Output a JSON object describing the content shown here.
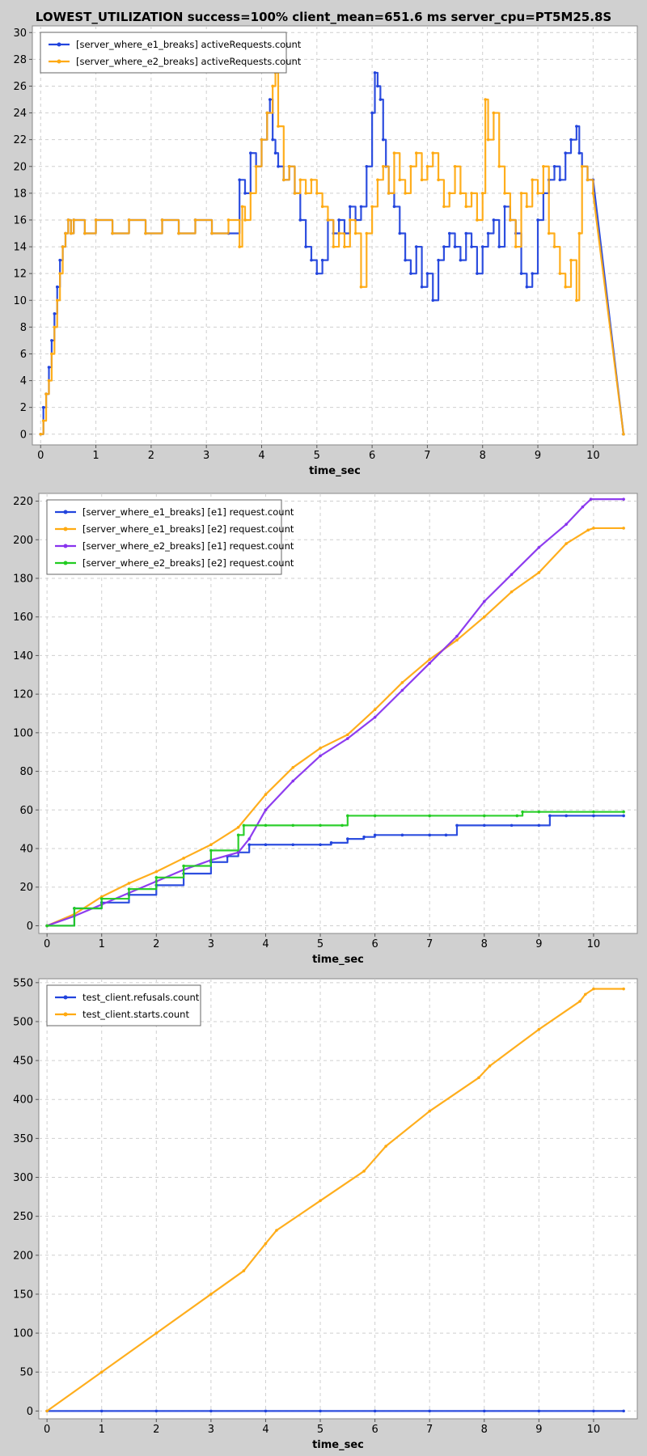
{
  "figure": {
    "title": "LOWEST_UTILIZATION success=100% client_mean=651.6 ms server_cpu=PT5M25.8S"
  },
  "chart_data": [
    {
      "type": "line",
      "xlabel": "time_sec",
      "ylabel": "",
      "xlim": [
        -0.15,
        10.8
      ],
      "ylim": [
        -0.8,
        30.5
      ],
      "xticks": [
        0,
        1,
        2,
        3,
        4,
        5,
        6,
        7,
        8,
        9,
        10
      ],
      "yticks": [
        0,
        2,
        4,
        6,
        8,
        10,
        12,
        14,
        16,
        18,
        20,
        22,
        24,
        26,
        28,
        30
      ],
      "grid": true,
      "legend_position": "top-left",
      "series": [
        {
          "name": "[server_where_e1_breaks] activeRequests.count",
          "color": "#2244dd",
          "step": true,
          "x": [
            0,
            0.05,
            0.1,
            0.15,
            0.2,
            0.25,
            0.3,
            0.35,
            0.4,
            0.45,
            0.5,
            0.55,
            0.6,
            0.8,
            1.0,
            1.3,
            1.6,
            1.9,
            2.2,
            2.5,
            2.8,
            3.1,
            3.4,
            3.6,
            3.7,
            3.8,
            3.9,
            4.0,
            4.1,
            4.15,
            4.2,
            4.25,
            4.3,
            4.4,
            4.5,
            4.6,
            4.7,
            4.8,
            4.9,
            5.0,
            5.1,
            5.2,
            5.3,
            5.4,
            5.5,
            5.6,
            5.7,
            5.8,
            5.9,
            6.0,
            6.05,
            6.1,
            6.15,
            6.2,
            6.25,
            6.3,
            6.4,
            6.5,
            6.6,
            6.7,
            6.8,
            6.9,
            7.0,
            7.1,
            7.2,
            7.3,
            7.4,
            7.5,
            7.6,
            7.7,
            7.8,
            7.9,
            8.0,
            8.1,
            8.2,
            8.3,
            8.4,
            8.5,
            8.6,
            8.7,
            8.8,
            8.9,
            9.0,
            9.1,
            9.2,
            9.3,
            9.4,
            9.5,
            9.6,
            9.7,
            9.75,
            9.8,
            9.9,
            10.0,
            10.55
          ],
          "y": [
            0,
            2,
            3,
            5,
            7,
            9,
            11,
            13,
            14,
            15,
            16,
            15,
            16,
            15,
            16,
            15,
            16,
            15,
            16,
            15,
            16,
            15,
            15,
            19,
            18,
            21,
            20,
            22,
            24,
            25,
            22,
            21,
            20,
            19,
            20,
            18,
            16,
            14,
            13,
            12,
            13,
            16,
            15,
            16,
            15,
            17,
            16,
            17,
            20,
            24,
            27,
            26,
            25,
            22,
            20,
            18,
            17,
            15,
            13,
            12,
            14,
            11,
            12,
            10,
            13,
            14,
            15,
            14,
            13,
            15,
            14,
            12,
            14,
            15,
            16,
            14,
            17,
            16,
            15,
            12,
            11,
            12,
            16,
            18,
            19,
            20,
            19,
            21,
            22,
            23,
            21,
            20,
            19,
            19,
            0
          ]
        },
        {
          "name": "[server_where_e2_breaks] activeRequests.count",
          "color": "#ffaa11",
          "step": true,
          "x": [
            0,
            0.05,
            0.1,
            0.15,
            0.2,
            0.25,
            0.3,
            0.35,
            0.4,
            0.45,
            0.5,
            0.55,
            0.6,
            0.8,
            1.0,
            1.3,
            1.6,
            1.9,
            2.2,
            2.5,
            2.8,
            3.1,
            3.4,
            3.6,
            3.65,
            3.7,
            3.8,
            3.9,
            4.0,
            4.1,
            4.2,
            4.25,
            4.3,
            4.4,
            4.5,
            4.6,
            4.7,
            4.8,
            4.9,
            5.0,
            5.1,
            5.2,
            5.3,
            5.4,
            5.5,
            5.6,
            5.7,
            5.8,
            5.9,
            6.0,
            6.1,
            6.2,
            6.3,
            6.4,
            6.5,
            6.6,
            6.7,
            6.8,
            6.9,
            7.0,
            7.1,
            7.2,
            7.3,
            7.4,
            7.5,
            7.6,
            7.7,
            7.8,
            7.9,
            8.0,
            8.05,
            8.1,
            8.2,
            8.3,
            8.4,
            8.5,
            8.6,
            8.7,
            8.8,
            8.9,
            9.0,
            9.1,
            9.2,
            9.3,
            9.4,
            9.5,
            9.6,
            9.7,
            9.75,
            9.8,
            9.9,
            10.0,
            10.55
          ],
          "y": [
            0,
            1,
            3,
            4,
            6,
            8,
            10,
            12,
            14,
            15,
            16,
            15,
            16,
            15,
            16,
            15,
            16,
            15,
            16,
            15,
            16,
            15,
            16,
            14,
            17,
            16,
            18,
            20,
            22,
            24,
            26,
            27,
            23,
            19,
            20,
            18,
            19,
            18,
            19,
            18,
            17,
            16,
            14,
            15,
            14,
            16,
            15,
            11,
            15,
            17,
            19,
            20,
            18,
            21,
            19,
            18,
            20,
            21,
            19,
            20,
            21,
            19,
            17,
            18,
            20,
            18,
            17,
            18,
            16,
            18,
            25,
            22,
            24,
            20,
            18,
            16,
            14,
            18,
            17,
            19,
            18,
            20,
            15,
            14,
            12,
            11,
            13,
            10,
            15,
            20,
            19,
            18,
            0
          ]
        }
      ]
    },
    {
      "type": "line",
      "xlabel": "time_sec",
      "ylabel": "",
      "xlim": [
        -0.15,
        10.8
      ],
      "ylim": [
        -4,
        224
      ],
      "xticks": [
        0,
        1,
        2,
        3,
        4,
        5,
        6,
        7,
        8,
        9,
        10
      ],
      "yticks": [
        0,
        20,
        40,
        60,
        80,
        100,
        120,
        140,
        160,
        180,
        200,
        220
      ],
      "grid": true,
      "legend_position": "top-left",
      "series": [
        {
          "name": "[server_where_e1_breaks] [e1] request.count",
          "color": "#2244dd",
          "step": true,
          "x": [
            0,
            0.5,
            1.0,
            1.5,
            2.0,
            2.5,
            3.0,
            3.3,
            3.5,
            3.7,
            4.0,
            4.5,
            5.0,
            5.2,
            5.5,
            5.8,
            6.0,
            6.5,
            7.0,
            7.3,
            7.5,
            8.0,
            8.5,
            9.0,
            9.2,
            9.5,
            10.0,
            10.55
          ],
          "y": [
            0,
            9,
            12,
            16,
            21,
            27,
            33,
            36,
            38,
            42,
            42,
            42,
            42,
            43,
            45,
            46,
            47,
            47,
            47,
            47,
            52,
            52,
            52,
            52,
            57,
            57,
            57,
            57
          ]
        },
        {
          "name": "[server_where_e1_breaks] [e2] request.count",
          "color": "#ffaa11",
          "step": false,
          "x": [
            0,
            0.5,
            1.0,
            1.5,
            2.0,
            2.5,
            3.0,
            3.5,
            4.0,
            4.5,
            5.0,
            5.5,
            6.0,
            6.5,
            7.0,
            7.5,
            8.0,
            8.5,
            9.0,
            9.5,
            9.9,
            10.0,
            10.55
          ],
          "y": [
            0,
            6,
            15,
            22,
            28,
            35,
            42,
            51,
            68,
            82,
            92,
            99,
            112,
            126,
            138,
            148,
            160,
            173,
            183,
            198,
            205,
            206,
            206
          ]
        },
        {
          "name": "[server_where_e2_breaks] [e1] request.count",
          "color": "#8833ee",
          "step": false,
          "x": [
            0,
            0.5,
            1.0,
            1.5,
            2.0,
            2.5,
            3.0,
            3.5,
            3.7,
            4.0,
            4.5,
            5.0,
            5.5,
            6.0,
            6.5,
            7.0,
            7.5,
            8.0,
            8.5,
            9.0,
            9.5,
            9.8,
            9.95,
            10.55
          ],
          "y": [
            0,
            5,
            11,
            17,
            23,
            29,
            34,
            38,
            45,
            60,
            75,
            88,
            97,
            108,
            122,
            136,
            150,
            168,
            182,
            196,
            208,
            217,
            221,
            221
          ]
        },
        {
          "name": "[server_where_e2_breaks] [e2] request.count",
          "color": "#22cc22",
          "step": true,
          "x": [
            0,
            0.5,
            1.0,
            1.5,
            2.0,
            2.5,
            3.0,
            3.5,
            3.6,
            4.0,
            4.5,
            5.0,
            5.4,
            5.5,
            6.0,
            7.0,
            8.0,
            8.6,
            8.7,
            9.0,
            10.0,
            10.55
          ],
          "y": [
            0,
            9,
            14,
            19,
            25,
            31,
            39,
            47,
            52,
            52,
            52,
            52,
            52,
            57,
            57,
            57,
            57,
            57,
            59,
            59,
            59,
            59
          ]
        }
      ]
    },
    {
      "type": "line",
      "xlabel": "time_sec",
      "ylabel": "",
      "xlim": [
        -0.15,
        10.8
      ],
      "ylim": [
        -10,
        555
      ],
      "xticks": [
        0,
        1,
        2,
        3,
        4,
        5,
        6,
        7,
        8,
        9,
        10
      ],
      "yticks": [
        0,
        50,
        100,
        150,
        200,
        250,
        300,
        350,
        400,
        450,
        500,
        550
      ],
      "grid": true,
      "legend_position": "top-left",
      "series": [
        {
          "name": "test_client.refusals.count",
          "color": "#2244dd",
          "step": false,
          "x": [
            0,
            1,
            2,
            3,
            4,
            5,
            6,
            7,
            8,
            9,
            10,
            10.55
          ],
          "y": [
            0,
            0,
            0,
            0,
            0,
            0,
            0,
            0,
            0,
            0,
            0,
            0
          ]
        },
        {
          "name": "test_client.starts.count",
          "color": "#ffaa11",
          "step": false,
          "x": [
            0,
            1,
            2,
            3,
            3.6,
            4.0,
            4.2,
            5.0,
            5.8,
            6.2,
            7.0,
            7.9,
            8.1,
            9.0,
            9.75,
            9.85,
            10.0,
            10.55
          ],
          "y": [
            0,
            50,
            100,
            150,
            180,
            215,
            232,
            270,
            308,
            340,
            385,
            428,
            443,
            490,
            526,
            535,
            542,
            542
          ]
        }
      ]
    }
  ]
}
